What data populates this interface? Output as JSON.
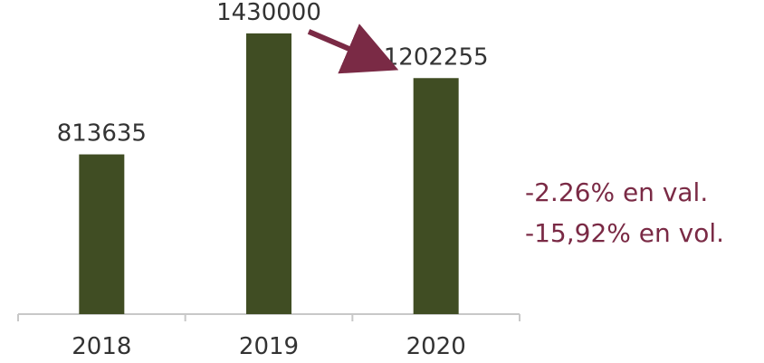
{
  "chart_data": {
    "type": "bar",
    "categories": [
      "2018",
      "2019",
      "2020"
    ],
    "values": [
      813635,
      1430000,
      1202255
    ],
    "data_labels": [
      "813635",
      "1430000",
      "1202255"
    ],
    "ylim": [
      0,
      1600000
    ],
    "grid": false,
    "legend": "none",
    "bar_color": "#404d23",
    "axis_color": "#c8c8c8",
    "label_color": "#333333",
    "annotation": {
      "arrow_from": "2019",
      "arrow_to": "2020",
      "arrow_color": "#7a2a45",
      "lines": [
        "-2.26% en val.",
        "-15,92% en vol."
      ],
      "color": "#7a2a45"
    }
  }
}
